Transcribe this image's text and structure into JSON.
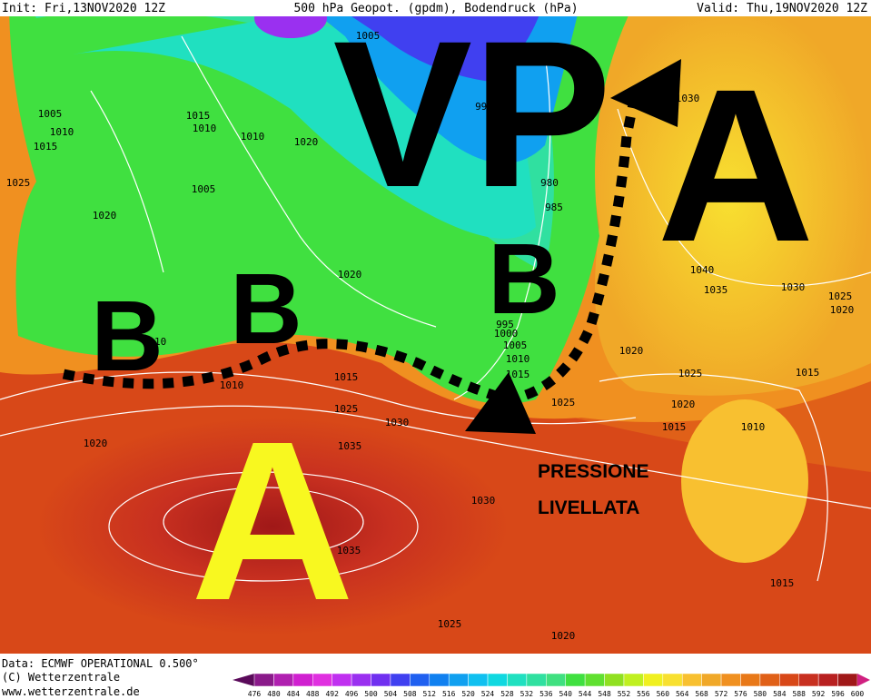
{
  "header": {
    "init": "Init: Fri,13NOV2020 12Z",
    "title": "500 hPa Geopot. (gpdm), Bodendruck (hPa)",
    "valid": "Valid: Thu,19NOV2020 12Z"
  },
  "isobar_labels": [
    "1005",
    "1010",
    "1015",
    "1025",
    "1020",
    "1015",
    "1010",
    "1010",
    "1020",
    "1005",
    "1020",
    "995",
    "980",
    "985",
    "1030",
    "1040",
    "1035",
    "1030",
    "1025",
    "1020",
    "1020",
    "1025",
    "1015",
    "1020",
    "1015",
    "1010",
    "1025",
    "1015",
    "1010",
    "1005",
    "1000",
    "995",
    "1015",
    "1010",
    "1025",
    "1030",
    "1035",
    "1020",
    "1030",
    "1035",
    "1025",
    "1020",
    "1015",
    "1010",
    "1005"
  ],
  "annotations": {
    "low_vp": "VP",
    "high_east": "A",
    "low_1": "B",
    "low_2": "B",
    "low_3": "B",
    "high_azores": "A",
    "note": [
      "PRESSIONE",
      "LIVELLATA"
    ]
  },
  "footer": {
    "data": "Data: ECMWF OPERATIONAL 0.500°",
    "copyright": "(C) Wetterzentrale",
    "url": "www.wetterzentrale.de"
  },
  "colorbar": {
    "labels": [
      476,
      480,
      484,
      488,
      492,
      496,
      500,
      504,
      508,
      512,
      516,
      520,
      524,
      528,
      532,
      536,
      540,
      544,
      548,
      552,
      556,
      560,
      564,
      568,
      572,
      576,
      580,
      584,
      588,
      592,
      596,
      600
    ],
    "colors": [
      "#5a0a5a",
      "#8a1a8a",
      "#b020b0",
      "#d020d0",
      "#e030e0",
      "#c030f0",
      "#9a30f0",
      "#7030f0",
      "#4040f0",
      "#2060f0",
      "#1080f0",
      "#10a0f0",
      "#10c0f0",
      "#10d8e0",
      "#20e0c0",
      "#30e0a0",
      "#40e080",
      "#40e040",
      "#60e030",
      "#90e020",
      "#c0f020",
      "#f0f020",
      "#f8e030",
      "#f8c030",
      "#f0a828",
      "#f09020",
      "#e87818",
      "#e06018",
      "#d84818",
      "#c83020",
      "#b82020",
      "#a01818",
      "#d02080"
    ]
  }
}
